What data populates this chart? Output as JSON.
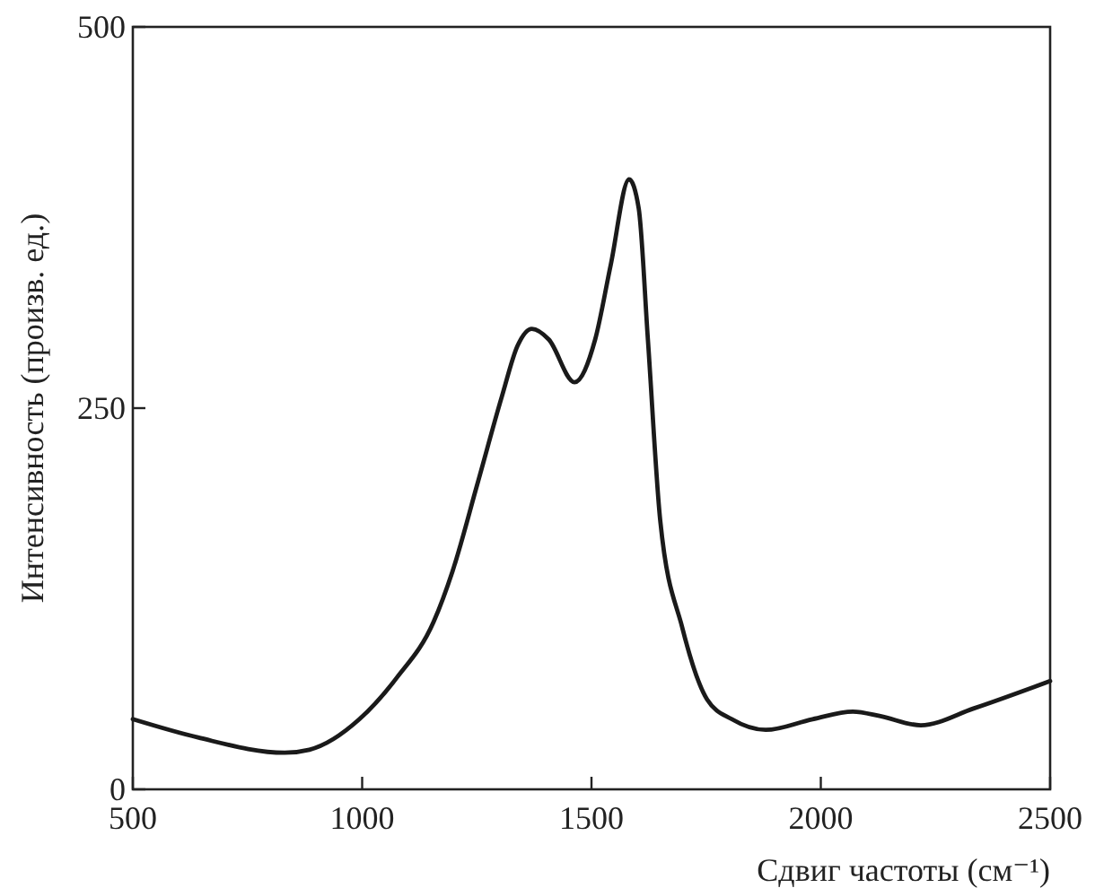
{
  "chart_data": {
    "type": "line",
    "xlabel": "Сдвиг частоты (см⁻¹)",
    "ylabel": "Интенсивность (произв. ед.)",
    "xlim": [
      500,
      2500
    ],
    "ylim": [
      0,
      500
    ],
    "xticks": [
      500,
      1000,
      1500,
      2000,
      2500
    ],
    "yticks": [
      0,
      250,
      500
    ],
    "grid": false,
    "series": [
      {
        "color": "#1a1a1a",
        "x": [
          500,
          642,
          831,
          885,
          994,
          1075,
          1156,
          1197,
          1251,
          1305,
          1339,
          1370,
          1407,
          1463,
          1508,
          1542,
          1582,
          1603,
          1623,
          1650,
          1698,
          1752,
          1806,
          1880,
          1982,
          2070,
          2130,
          2218,
          2333,
          2500
        ],
        "values": [
          46,
          34,
          24,
          26,
          46,
          73,
          110,
          143,
          200,
          258,
          291,
          302,
          295,
          267,
          295,
          344,
          400,
          381,
          295,
          176,
          106,
          59,
          46,
          39,
          46,
          51,
          48,
          42,
          53,
          71
        ]
      }
    ]
  }
}
